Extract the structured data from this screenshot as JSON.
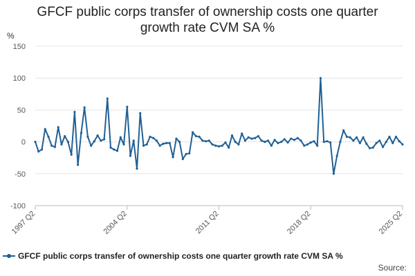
{
  "chart_data": {
    "type": "line",
    "title_line1": "GFCF public corps transfer of ownership costs one quarter",
    "title_line2": "growth rate CVM SA %",
    "ylabel": "%",
    "ylim": [
      -100,
      150
    ],
    "yticks": [
      -100,
      -50,
      0,
      50,
      100,
      150
    ],
    "grid": true,
    "legend_position": "bottom-left",
    "color": "#206095",
    "xtick_labels": [
      "1997 Q2",
      "2004 Q2",
      "2011 Q2",
      "2018 Q2",
      "2025 Q2"
    ],
    "start_quarter": "1997 Q2",
    "series": [
      {
        "name": "GFCF public corps transfer of ownership costs one quarter growth rate CVM SA %",
        "values": [
          0,
          -15,
          -12,
          20,
          8,
          -6,
          -8,
          23,
          -4,
          9,
          0,
          -20,
          47,
          -36,
          14,
          54,
          8,
          -6,
          1,
          10,
          2,
          4,
          68,
          -9,
          -12,
          -14,
          7,
          -4,
          55,
          -22,
          2,
          -42,
          45,
          -6,
          -4,
          8,
          6,
          2,
          -6,
          -3,
          -2,
          -2,
          -24,
          5,
          0,
          -27,
          -19,
          -18,
          15,
          9,
          8,
          2,
          1,
          2,
          -4,
          -6,
          -7,
          -6,
          -1,
          -9,
          10,
          0,
          -4,
          13,
          2,
          7,
          5,
          6,
          9,
          2,
          0,
          2,
          -6,
          3,
          -2,
          0,
          4,
          -1,
          5,
          3,
          6,
          2,
          -6,
          -4,
          -1,
          1,
          -6,
          100,
          0,
          1,
          -1,
          -50,
          -22,
          0,
          18,
          8,
          7,
          2,
          7,
          -2,
          7,
          -3,
          -10,
          -9,
          -2,
          2,
          -8,
          0,
          8,
          -2,
          8,
          1,
          -4
        ]
      }
    ]
  },
  "legend": {
    "label": "GFCF public corps transfer of ownership costs one quarter growth rate CVM SA %"
  },
  "source_label": "Source:"
}
